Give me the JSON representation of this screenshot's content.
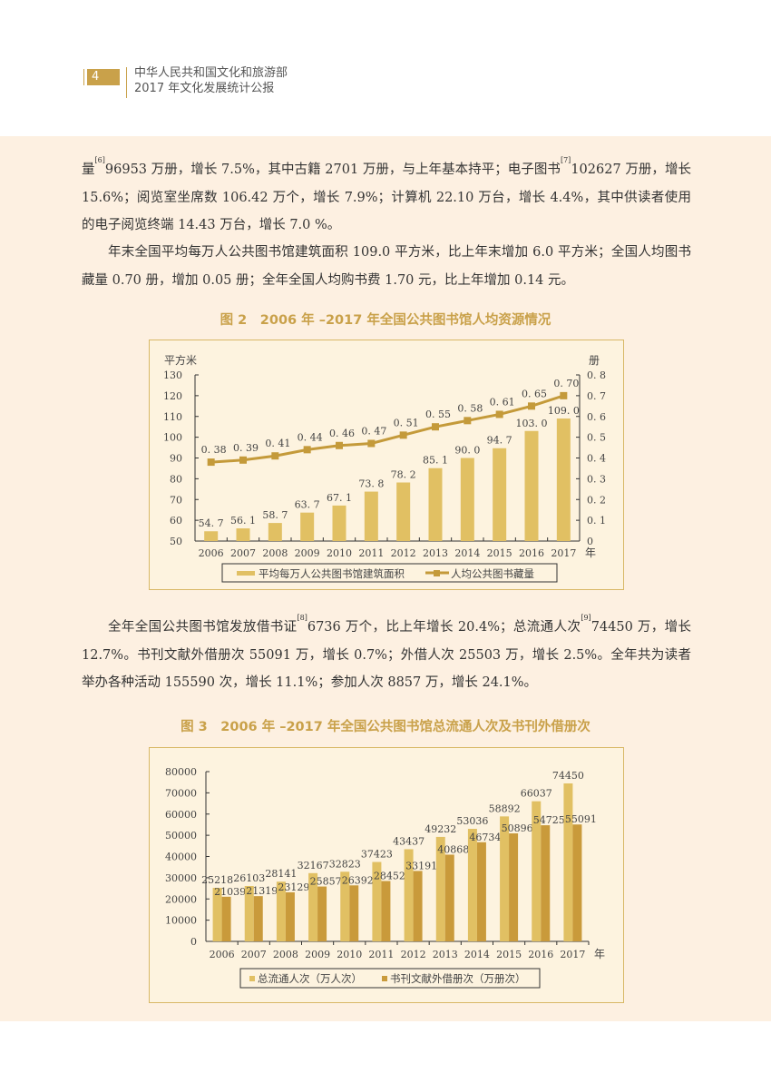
{
  "header": {
    "page_number": "4",
    "title_line1": "中华人民共和国文化和旅游部",
    "title_line2": "2017 年文化发展统计公报"
  },
  "body": {
    "para1": {
      "p1": "量",
      "sup1": "[6]",
      "p2": "96953 万册，增长 7.5%，其中古籍 2701 万册，与上年基本持平；电子图书",
      "sup2": "[7]",
      "p3": "102627 万册，增长 15.6%；阅览室坐席数 106.42 万个，增长 7.9%；计算机 22.10 万台，增长 4.4%，其中供读者使用的电子阅览终端 14.43 万台，增长 7.0 %。"
    },
    "para2": "年末全国平均每万人公共图书馆建筑面积 109.0 平方米，比上年末增加 6.0 平方米；全国人均图书藏量 0.70 册，增加 0.05 册；全年全国人均购书费 1.70 元，比上年增加 0.14 元。",
    "para3": {
      "p1": "全年全国公共图书馆发放借书证",
      "sup1": "[8]",
      "p2": "6736 万个，比上年增长 20.4%；总流通人次",
      "sup2": "[9]",
      "p3": "74450 万，增长 12.7%。书刊文献外借册次 55091 万，增长 0.7%；外借人次 25503 万，增长 2.5%。全年共为读者举办各种活动 155590 次，增长 11.1%；参加人次 8857 万，增长 24.1%。"
    },
    "fig2_title": "图 2　2006 年 –2017 年全国公共图书馆人均资源情况",
    "fig3_title": "图 3　2006 年 –2017 年全国公共图书馆总流通人次及书刊外借册次"
  },
  "colors": {
    "accent": "#c9a14a",
    "bar_light": "#e1c063",
    "bar_dark": "#c99a3b",
    "line": "#c49a3a",
    "band_bg": "#fdf0e1",
    "chart_bg": "#fdf3df"
  },
  "chart_data": [
    {
      "type": "bar+line",
      "title": "图 2　2006 年 –2017 年全国公共图书馆人均资源情况",
      "categories": [
        "2006",
        "2007",
        "2008",
        "2009",
        "2010",
        "2011",
        "2012",
        "2013",
        "2014",
        "2015",
        "2016",
        "2017"
      ],
      "xlabel": "年",
      "ylabel_left": "平方米",
      "ylabel_right": "册",
      "ylim_left": [
        50,
        130
      ],
      "yticks_left": [
        50,
        60,
        70,
        80,
        90,
        100,
        110,
        120,
        130
      ],
      "ylim_right": [
        0,
        0.8
      ],
      "yticks_right": [
        "0",
        "0.1",
        "0.2",
        "0.3",
        "0.4",
        "0.5",
        "0.6",
        "0.7",
        "0.8"
      ],
      "series": [
        {
          "name": "平均每万人公共图书馆建筑面积",
          "type": "bar",
          "axis": "left",
          "values": [
            54.7,
            56.1,
            58.7,
            63.7,
            67.1,
            73.8,
            78.2,
            85.1,
            90.0,
            94.7,
            103.0,
            109.0
          ],
          "labels": [
            "54.7",
            "56.1",
            "58.7",
            "63.7",
            "67.1",
            "73.8",
            "78.2",
            "85.1",
            "90.0",
            "94.7",
            "103.0",
            "109.0"
          ]
        },
        {
          "name": "人均公共图书藏量",
          "type": "line",
          "axis": "right",
          "values": [
            0.38,
            0.39,
            0.41,
            0.44,
            0.46,
            0.47,
            0.51,
            0.55,
            0.58,
            0.61,
            0.65,
            0.7
          ],
          "labels": [
            "0.38",
            "0.39",
            "0.41",
            "0.44",
            "0.46",
            "0.47",
            "0.51",
            "0.55",
            "0.58",
            "0.61",
            "0.65",
            "0.70"
          ]
        }
      ],
      "legend_position": "bottom",
      "grid": false
    },
    {
      "type": "bar",
      "title": "图 3　2006 年 –2017 年全国公共图书馆总流通人次及书刊外借册次",
      "categories": [
        "2006",
        "2007",
        "2008",
        "2009",
        "2010",
        "2011",
        "2012",
        "2013",
        "2014",
        "2015",
        "2016",
        "2017"
      ],
      "xlabel": "年",
      "ylabel": "",
      "ylim": [
        0,
        80000
      ],
      "yticks": [
        0,
        10000,
        20000,
        30000,
        40000,
        50000,
        60000,
        70000,
        80000
      ],
      "series": [
        {
          "name": "总流通人次（万人次）",
          "values": [
            25218,
            26103,
            28141,
            32167,
            32823,
            37423,
            43437,
            49232,
            53036,
            58892,
            66037,
            74450
          ]
        },
        {
          "name": "书刊文献外借册次（万册次）",
          "values": [
            21039,
            21319,
            23129,
            25857,
            26392,
            28452,
            33191,
            40868,
            46734,
            50896,
            54725,
            55091
          ]
        }
      ],
      "legend_position": "bottom",
      "grid": false
    }
  ]
}
